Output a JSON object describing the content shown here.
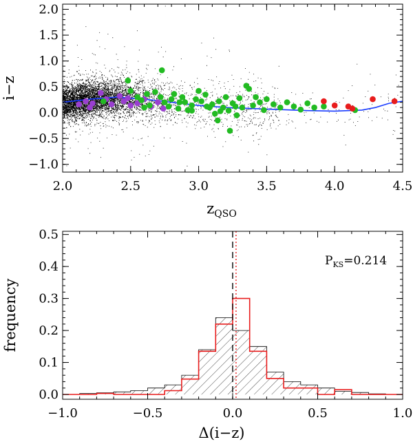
{
  "chart_data": [
    {
      "type": "scatter",
      "title": "",
      "xlabel": "z",
      "xlabel_sub": "QSO",
      "ylabel": "i−z",
      "xlim": [
        2.0,
        4.5
      ],
      "ylim": [
        -1.15,
        2.1
      ],
      "x_ticks": [
        "2.0",
        "2.5",
        "3.0",
        "3.5",
        "4.0",
        "4.5"
      ],
      "y_ticks": [
        "−1.0",
        "−0.5",
        "0.0",
        "0.5",
        "1.0",
        "1.5",
        "2.0"
      ],
      "background_cloud": {
        "color": "#000000",
        "distribution": "dense cloud of QSOs, densest near z 2.2–2.5, i−z spread about ±0.5 around the median"
      },
      "median_curve": {
        "color": "#1a3cff",
        "x": [
          2.0,
          2.2,
          2.4,
          2.6,
          2.8,
          3.0,
          3.2,
          3.4,
          3.6,
          3.8,
          4.0,
          4.2,
          4.3,
          4.4,
          4.5
        ],
        "y": [
          0.2,
          0.26,
          0.3,
          0.26,
          0.2,
          0.14,
          0.1,
          0.08,
          0.06,
          0.04,
          0.03,
          0.05,
          0.1,
          0.18,
          0.22
        ]
      },
      "series": [
        {
          "color": "#9a3fd0",
          "points": [
            [
              2.12,
              0.16
            ],
            [
              2.17,
              0.22
            ],
            [
              2.22,
              0.18
            ],
            [
              2.28,
              0.38
            ],
            [
              2.32,
              0.26
            ],
            [
              2.36,
              0.16
            ],
            [
              2.42,
              0.32
            ],
            [
              2.45,
              0.22
            ],
            [
              2.5,
              0.14
            ],
            [
              2.55,
              0.18
            ],
            [
              2.6,
              0.26
            ],
            [
              2.65,
              0.12
            ],
            [
              2.7,
              0.2
            ],
            [
              2.74,
              0.08
            ],
            [
              2.2,
              0.1
            ],
            [
              2.48,
              0.28
            ]
          ]
        },
        {
          "color": "#22bb22",
          "points": [
            [
              2.3,
              0.22
            ],
            [
              2.48,
              0.62
            ],
            [
              2.5,
              0.42
            ],
            [
              2.55,
              0.3
            ],
            [
              2.58,
              0.24
            ],
            [
              2.62,
              0.36
            ],
            [
              2.64,
              0.14
            ],
            [
              2.68,
              0.4
            ],
            [
              2.72,
              0.3
            ],
            [
              2.73,
              0.82
            ],
            [
              2.75,
              0.2
            ],
            [
              2.78,
              0.12
            ],
            [
              2.8,
              0.26
            ],
            [
              2.82,
              0.36
            ],
            [
              2.85,
              0.08
            ],
            [
              2.88,
              0.3
            ],
            [
              2.9,
              0.2
            ],
            [
              2.92,
              0.05
            ],
            [
              2.95,
              0.14
            ],
            [
              2.98,
              0.26
            ],
            [
              3.0,
              0.42
            ],
            [
              3.02,
              0.22
            ],
            [
              3.05,
              0.35
            ],
            [
              3.08,
              0.1
            ],
            [
              3.1,
              0.16
            ],
            [
              3.12,
              -0.02
            ],
            [
              3.14,
              -0.15
            ],
            [
              3.15,
              0.22
            ],
            [
              3.18,
              0.1
            ],
            [
              3.2,
              0.3
            ],
            [
              3.22,
              0.04
            ],
            [
              3.23,
              -0.35
            ],
            [
              3.25,
              0.18
            ],
            [
              3.28,
              -0.05
            ],
            [
              3.3,
              0.28
            ],
            [
              3.32,
              0.1
            ],
            [
              3.35,
              0.52
            ],
            [
              3.37,
              0.46
            ],
            [
              3.4,
              0.14
            ],
            [
              3.42,
              0.3
            ],
            [
              3.45,
              0.2
            ],
            [
              3.48,
              0.05
            ],
            [
              3.5,
              0.26
            ],
            [
              3.55,
              0.16
            ],
            [
              3.6,
              0.1
            ],
            [
              3.65,
              0.2
            ],
            [
              3.7,
              0.12
            ],
            [
              3.75,
              0.06
            ],
            [
              3.8,
              0.18
            ],
            [
              3.85,
              0.1
            ],
            [
              3.92,
              0.12
            ],
            [
              4.15,
              0.05
            ],
            [
              2.95,
              0.04
            ],
            [
              3.06,
              0.12
            ],
            [
              3.27,
              0.12
            ],
            [
              2.6,
              0.1
            ],
            [
              2.86,
              0.2
            ],
            [
              3.16,
              0.03
            ]
          ]
        },
        {
          "color": "#e81c1c",
          "points": [
            [
              3.92,
              0.22
            ],
            [
              4.0,
              0.14
            ],
            [
              4.1,
              0.12
            ],
            [
              4.13,
              0.08
            ],
            [
              4.28,
              0.26
            ],
            [
              4.44,
              0.22
            ]
          ]
        }
      ]
    },
    {
      "type": "bar",
      "title": "",
      "xlabel": "Δ(i−z)",
      "ylabel": "frequency",
      "xlim": [
        -1.0,
        1.0
      ],
      "ylim": [
        -0.015,
        0.51
      ],
      "x_ticks": [
        "−1.0",
        "−0.5",
        "0.0",
        "0.5",
        "1.0"
      ],
      "y_ticks": [
        "0.0",
        "0.1",
        "0.2",
        "0.3",
        "0.4",
        "0.5"
      ],
      "annotation": {
        "text": "P",
        "sub": "KS",
        "suffix": "=0.214"
      },
      "bin_edges": [
        -1.0,
        -0.9,
        -0.8,
        -0.7,
        -0.6,
        -0.5,
        -0.4,
        -0.3,
        -0.2,
        -0.1,
        0.0,
        0.1,
        0.2,
        0.3,
        0.4,
        0.5,
        0.6,
        0.7,
        0.8,
        0.9,
        1.0
      ],
      "series": [
        {
          "style": "hatched",
          "color": "#000000",
          "values": [
            0.0,
            0.003,
            0.005,
            0.008,
            0.012,
            0.02,
            0.03,
            0.06,
            0.14,
            0.24,
            0.2,
            0.15,
            0.07,
            0.04,
            0.03,
            0.02,
            0.01,
            0.006,
            0.002,
            0.0
          ]
        },
        {
          "style": "step",
          "color": "#e81c1c",
          "values": [
            0.0,
            0.0,
            0.003,
            0.0,
            0.0,
            0.0,
            0.012,
            0.048,
            0.135,
            0.22,
            0.3,
            0.135,
            0.05,
            0.02,
            0.02,
            0.0,
            0.015,
            0.0,
            0.0,
            0.0
          ]
        }
      ],
      "vlines": [
        {
          "x": 0.0,
          "style": "dashed",
          "color": "#000000"
        },
        {
          "x": 0.02,
          "style": "dotted",
          "color": "#e81c1c"
        }
      ]
    }
  ]
}
